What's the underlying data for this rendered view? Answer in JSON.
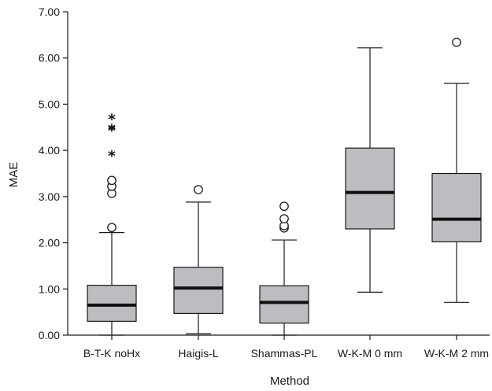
{
  "chart_data": {
    "type": "boxplot",
    "title": "",
    "xlabel": "Method",
    "ylabel": "MAE",
    "ylim": [
      0,
      7
    ],
    "yticks": [
      "0.00",
      "1.00",
      "2.00",
      "3.00",
      "4.00",
      "5.00",
      "6.00",
      "7.00"
    ],
    "ytick_values": [
      0,
      1,
      2,
      3,
      4,
      5,
      6,
      7
    ],
    "grid": false,
    "colors": {
      "box_fill": "#bdbdc1",
      "line": "#1a1a1a",
      "median": "#111111"
    },
    "categories": [
      "B-T-K noHx",
      "Haigis-L",
      "Shammas-PL",
      "W-K-M 0 mm",
      "W-K-M 2 mm"
    ],
    "boxes": [
      {
        "category": "B-T-K noHx",
        "min": 0.0,
        "q1": 0.3,
        "median": 0.65,
        "q3": 1.08,
        "max": 2.22,
        "outliers": [
          2.33,
          3.07,
          3.22,
          3.35
        ],
        "extremes": [
          3.93,
          4.47,
          4.5,
          4.72
        ]
      },
      {
        "category": "Haigis-L",
        "min": 0.03,
        "q1": 0.47,
        "median": 1.02,
        "q3": 1.47,
        "max": 2.88,
        "outliers": [
          3.15
        ],
        "extremes": []
      },
      {
        "category": "Shammas-PL",
        "min": 0.0,
        "q1": 0.26,
        "median": 0.71,
        "q3": 1.07,
        "max": 2.06,
        "outliers": [
          2.32,
          2.37,
          2.52,
          2.79
        ],
        "extremes": []
      },
      {
        "category": "W-K-M 0 mm",
        "min": 0.93,
        "q1": 2.3,
        "median": 3.09,
        "q3": 4.05,
        "max": 6.22,
        "outliers": [],
        "extremes": []
      },
      {
        "category": "W-K-M 2 mm",
        "min": 0.71,
        "q1": 2.02,
        "median": 2.51,
        "q3": 3.5,
        "max": 5.45,
        "outliers": [
          6.34
        ],
        "extremes": []
      }
    ]
  }
}
